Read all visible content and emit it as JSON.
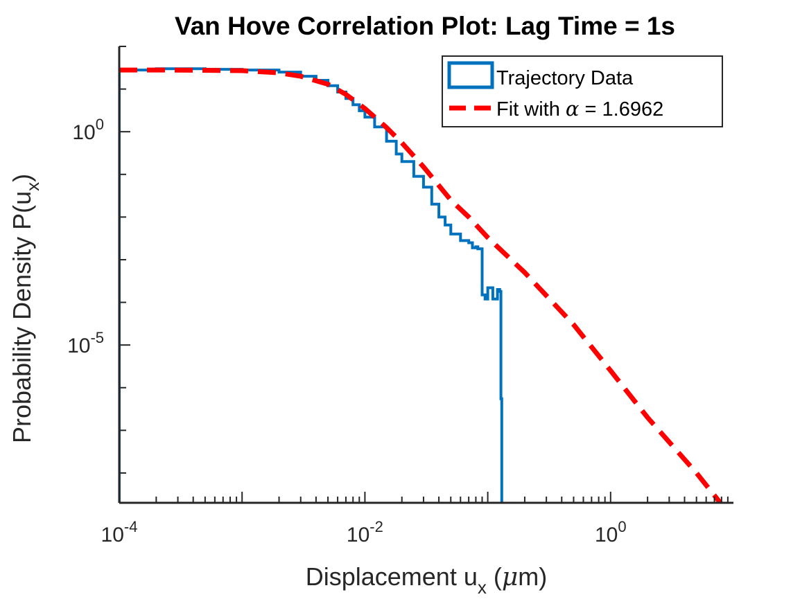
{
  "chart_data": {
    "type": "line",
    "title": "Van Hove Correlation Plot: Lag Time = 1s",
    "xlabel": "Displacement u",
    "xlabel_sub": "x",
    "xlabel_unit_pre": " (",
    "xlabel_unit_mu": "μ",
    "xlabel_unit_post": "m)",
    "ylabel": "Probability Density P(u",
    "ylabel_sub": "x",
    "ylabel_close": ")",
    "x_scale": "log",
    "y_scale": "log",
    "xlim": [
      0.0001,
      10
    ],
    "ylim": [
      2e-09,
      100
    ],
    "grid": false,
    "legend_position": "top-right",
    "x_ticks": [
      {
        "value": 0.0001,
        "base": "10",
        "exp": "-4"
      },
      {
        "value": 0.01,
        "base": "10",
        "exp": "-2"
      },
      {
        "value": 1,
        "base": "10",
        "exp": "0"
      }
    ],
    "y_ticks": [
      {
        "value": 1,
        "base": "10",
        "exp": "0"
      },
      {
        "value": 1e-05,
        "base": "10",
        "exp": "-5"
      }
    ],
    "series": [
      {
        "name": "Trajectory Data",
        "color": "#0072BD",
        "style": "stairs",
        "x": [
          0.0001,
          0.0002,
          0.0005,
          0.001,
          0.002,
          0.003,
          0.004,
          0.005,
          0.006,
          0.007,
          0.008,
          0.009,
          0.01,
          0.012,
          0.015,
          0.018,
          0.02,
          0.025,
          0.03,
          0.035,
          0.04,
          0.045,
          0.05,
          0.06,
          0.07,
          0.075,
          0.08,
          0.083,
          0.09,
          0.095,
          0.1,
          0.11,
          0.12,
          0.125,
          0.128,
          0.13
        ],
        "y": [
          28,
          30,
          29,
          28,
          25,
          20,
          16,
          12,
          8.5,
          6,
          4.3,
          3.1,
          2.2,
          1.3,
          0.6,
          0.3,
          0.2,
          0.09,
          0.05,
          0.02,
          0.01,
          0.0065,
          0.004,
          0.0028,
          0.0025,
          0.0019,
          0.002,
          0.0018,
          0.00015,
          0.00012,
          0.00022,
          0.00012,
          0.0002,
          0.00018,
          5.5e-07,
          2e-09
        ]
      },
      {
        "name": "Fit with ",
        "name_symbol": "α",
        "name_value": " = 1.6962",
        "color": "#FF0000",
        "style": "dashed",
        "alpha": 1.6962,
        "x": [
          0.0001,
          0.0002,
          0.0005,
          0.001,
          0.002,
          0.003,
          0.005,
          0.007,
          0.01,
          0.015,
          0.02,
          0.03,
          0.05,
          0.07,
          0.1,
          0.2,
          0.5,
          1,
          2,
          5,
          9
        ],
        "y": [
          28,
          28,
          27.5,
          27,
          24,
          20,
          13,
          7.5,
          3.5,
          1.25,
          0.55,
          0.15,
          0.025,
          0.01,
          0.0033,
          0.0005,
          3e-05,
          2.5e-06,
          2e-07,
          1e-08,
          1.2e-09
        ]
      }
    ]
  }
}
